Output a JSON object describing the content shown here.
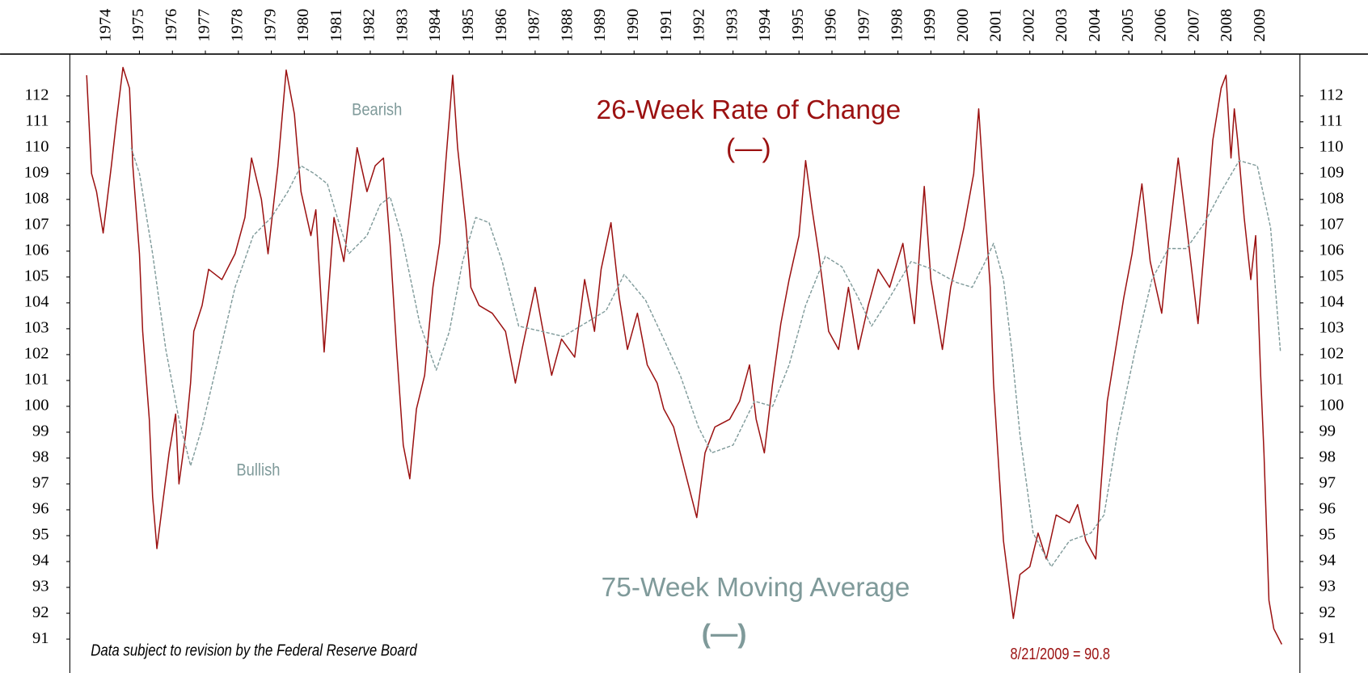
{
  "chart_data": {
    "type": "line",
    "xlim": [
      1972.89,
      2010.19
    ],
    "xticks": [
      1974,
      1975,
      1976,
      1977,
      1978,
      1979,
      1980,
      1981,
      1982,
      1983,
      1984,
      1985,
      1986,
      1987,
      1988,
      1989,
      1990,
      1991,
      1992,
      1993,
      1994,
      1995,
      1996,
      1997,
      1998,
      1999,
      2000,
      2001,
      2002,
      2003,
      2004,
      2005,
      2006,
      2007,
      2008,
      2009
    ],
    "ylim": [
      89.69,
      113.62
    ],
    "yticks": [
      91,
      92,
      93,
      94,
      95,
      96,
      97,
      98,
      99,
      100,
      101,
      102,
      103,
      104,
      105,
      106,
      107,
      108,
      109,
      110,
      111,
      112
    ],
    "series": [
      {
        "name": "26-Week Rate of Change",
        "color": "#9b1111",
        "dashed": false,
        "x": [
          1973.4,
          1973.55,
          1973.7,
          1973.9,
          1974.15,
          1974.3,
          1974.5,
          1974.7,
          1974.8,
          1975.0,
          1975.1,
          1975.3,
          1975.4,
          1975.53,
          1975.7,
          1975.9,
          1976.1,
          1976.2,
          1976.4,
          1976.55,
          1976.65,
          1976.9,
          1977.1,
          1977.5,
          1977.9,
          1978.2,
          1978.4,
          1978.7,
          1978.9,
          1979.2,
          1979.45,
          1979.7,
          1979.9,
          1980.2,
          1980.35,
          1980.6,
          1980.9,
          1981.2,
          1981.6,
          1981.9,
          1982.15,
          1982.4,
          1982.6,
          1982.8,
          1983.0,
          1983.2,
          1983.4,
          1983.65,
          1983.9,
          1984.1,
          1984.3,
          1984.5,
          1984.65,
          1984.9,
          1985.05,
          1985.3,
          1985.7,
          1986.1,
          1986.4,
          1986.6,
          1987.0,
          1987.2,
          1987.5,
          1987.8,
          1988.2,
          1988.5,
          1988.8,
          1989.0,
          1989.3,
          1989.55,
          1989.8,
          1990.1,
          1990.4,
          1990.7,
          1990.9,
          1991.2,
          1991.4,
          1991.7,
          1991.9,
          1992.15,
          1992.45,
          1992.9,
          1993.2,
          1993.5,
          1993.7,
          1993.95,
          1994.2,
          1994.45,
          1994.7,
          1995.0,
          1995.2,
          1995.4,
          1995.6,
          1995.9,
          1996.2,
          1996.5,
          1996.8,
          1997.1,
          1997.4,
          1997.75,
          1998.15,
          1998.5,
          1998.8,
          1999.0,
          1999.35,
          1999.6,
          2000.0,
          2000.3,
          2000.45,
          2000.6,
          2000.8,
          2000.9,
          2001.05,
          2001.2,
          2001.4,
          2001.5,
          2001.7,
          2002.0,
          2002.25,
          2002.5,
          2002.8,
          2003.2,
          2003.45,
          2003.7,
          2004.0,
          2004.15,
          2004.35,
          2004.6,
          2004.85,
          2005.1,
          2005.4,
          2005.65,
          2006.0,
          2006.2,
          2006.5,
          2006.75,
          2007.1,
          2007.3,
          2007.55,
          2007.8,
          2007.95,
          2008.1,
          2008.2,
          2008.3,
          2008.5,
          2008.7,
          2008.85,
          2009.0,
          2009.1,
          2009.25,
          2009.4,
          2009.64
        ],
        "values": [
          112.8,
          109.0,
          108.3,
          106.7,
          109.3,
          111.0,
          113.1,
          112.3,
          109.3,
          105.9,
          102.9,
          99.5,
          96.5,
          94.5,
          96.2,
          98.2,
          99.7,
          97.0,
          98.9,
          100.9,
          102.9,
          103.9,
          105.3,
          104.9,
          105.9,
          107.3,
          109.6,
          108.0,
          105.9,
          109.3,
          113.0,
          111.3,
          108.3,
          106.6,
          107.6,
          102.1,
          107.3,
          105.6,
          110.0,
          108.3,
          109.3,
          109.6,
          106.3,
          102.2,
          98.5,
          97.2,
          99.9,
          101.2,
          104.6,
          106.3,
          109.6,
          112.8,
          110.0,
          107.0,
          104.6,
          103.9,
          103.6,
          102.9,
          100.9,
          102.2,
          104.6,
          103.2,
          101.2,
          102.6,
          101.9,
          104.9,
          102.9,
          105.3,
          107.1,
          104.2,
          102.2,
          103.6,
          101.6,
          100.9,
          99.9,
          99.2,
          98.2,
          96.7,
          95.7,
          98.2,
          99.2,
          99.5,
          100.2,
          101.6,
          99.5,
          98.2,
          100.9,
          103.2,
          104.9,
          106.6,
          109.5,
          107.6,
          105.9,
          102.9,
          102.2,
          104.6,
          102.2,
          103.9,
          105.3,
          104.6,
          106.3,
          103.2,
          108.5,
          104.9,
          102.2,
          104.6,
          106.9,
          109.0,
          111.5,
          108.5,
          104.6,
          100.9,
          97.8,
          94.8,
          92.8,
          91.8,
          93.5,
          93.8,
          95.1,
          94.1,
          95.8,
          95.5,
          96.2,
          94.8,
          94.1,
          96.8,
          100.2,
          102.2,
          104.2,
          105.9,
          108.6,
          105.6,
          103.6,
          106.3,
          109.6,
          107.0,
          103.2,
          106.3,
          110.3,
          112.3,
          112.8,
          109.6,
          111.5,
          110.3,
          107.3,
          104.9,
          106.6,
          101.2,
          98.2,
          92.5,
          91.4,
          90.8
        ]
      },
      {
        "name": "75-Week Moving Average",
        "color": "#7f9a9a",
        "dashed": true,
        "x": [
          1974.75,
          1975.0,
          1975.4,
          1975.8,
          1976.2,
          1976.55,
          1976.9,
          1977.4,
          1977.9,
          1978.45,
          1979.0,
          1979.5,
          1979.9,
          1980.3,
          1980.7,
          1981.0,
          1981.35,
          1981.9,
          1982.3,
          1982.6,
          1982.95,
          1983.5,
          1984.0,
          1984.4,
          1984.8,
          1985.2,
          1985.6,
          1986.0,
          1986.5,
          1987.2,
          1987.85,
          1988.5,
          1989.15,
          1989.7,
          1990.35,
          1990.9,
          1991.4,
          1991.95,
          1992.35,
          1993.0,
          1993.65,
          1994.2,
          1994.7,
          1995.2,
          1995.8,
          1996.3,
          1996.8,
          1997.2,
          1997.75,
          1998.4,
          1999.05,
          1999.75,
          2000.25,
          2000.65,
          2000.9,
          2001.2,
          2001.45,
          2001.7,
          2002.1,
          2002.65,
          2003.2,
          2003.85,
          2004.25,
          2004.65,
          2005.2,
          2005.7,
          2006.2,
          2006.75,
          2007.3,
          2007.8,
          2008.35,
          2008.9,
          2009.3,
          2009.6
        ],
        "values": [
          110.0,
          109.0,
          105.9,
          102.2,
          99.5,
          97.7,
          99.2,
          101.9,
          104.6,
          106.6,
          107.3,
          108.3,
          109.3,
          109.0,
          108.6,
          107.3,
          105.9,
          106.6,
          107.8,
          108.1,
          106.6,
          103.2,
          101.4,
          102.9,
          105.6,
          107.3,
          107.1,
          105.6,
          103.1,
          102.9,
          102.7,
          103.2,
          103.7,
          105.1,
          104.1,
          102.6,
          101.2,
          99.2,
          98.2,
          98.5,
          100.2,
          100.0,
          101.6,
          103.9,
          105.8,
          105.4,
          104.2,
          103.1,
          104.2,
          105.6,
          105.3,
          104.8,
          104.6,
          105.6,
          106.3,
          104.9,
          102.2,
          98.9,
          95.1,
          93.8,
          94.8,
          95.1,
          95.8,
          98.9,
          102.2,
          104.9,
          106.1,
          106.1,
          107.1,
          108.3,
          109.5,
          109.3,
          106.9,
          102.1
        ]
      }
    ],
    "annotations": [
      "Bearish",
      "Bullish",
      "(—)",
      "(—)",
      "Data subject to revision by the Federal Reserve Board",
      "8/21/2009 = 90.8"
    ]
  }
}
